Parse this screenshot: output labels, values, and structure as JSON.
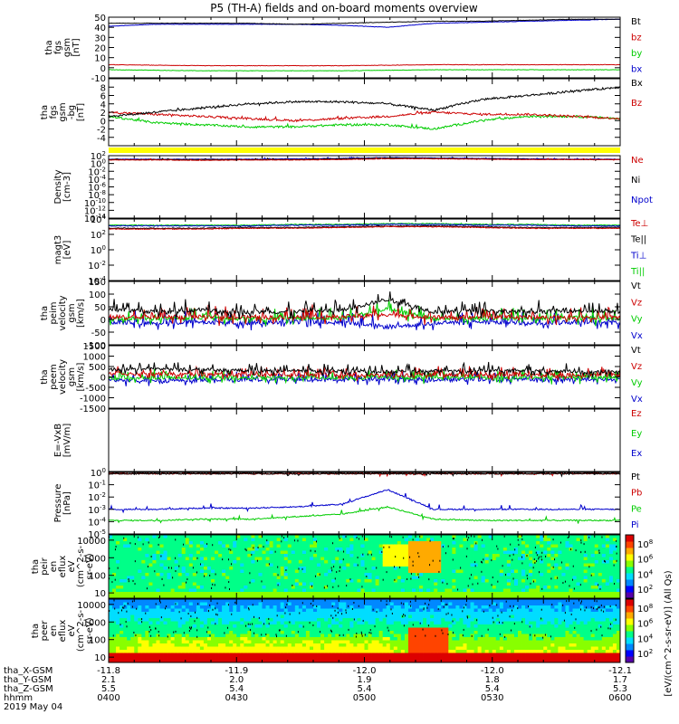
{
  "chart_data": {
    "title": "P5 (TH-A) fields and on-board moments overview",
    "type": "line",
    "date": "2019 May 04",
    "x": {
      "unit": "hhmm",
      "ticks": [
        "0400",
        "0430",
        "0500",
        "0530",
        "0600"
      ],
      "ephemeris": [
        {
          "name": "tha_X-GSM",
          "values": [
            "-11.8",
            "-11.9",
            "-12.0",
            "-12.0",
            "-12.1"
          ]
        },
        {
          "name": "tha_Y-GSM",
          "values": [
            "2.1",
            "2.0",
            "1.9",
            "1.8",
            "1.7"
          ]
        },
        {
          "name": "tha_Z-GSM",
          "values": [
            "5.5",
            "5.4",
            "5.4",
            "5.4",
            "5.3"
          ]
        }
      ]
    },
    "panels": [
      {
        "ylabel": [
          "tha",
          "fgs",
          "gsm",
          "[nT]"
        ],
        "ylim": [
          -10,
          50
        ],
        "yticks": [
          "50",
          "40",
          "30",
          "20",
          "10",
          "0",
          "-10"
        ],
        "series": [
          {
            "name": "Bt",
            "color": "#000000",
            "values": [
              44,
              44,
              44,
              44,
              43,
              44,
              45,
              46,
              46,
              47,
              48,
              48
            ]
          },
          {
            "name": "bz",
            "color": "#cc0000",
            "values": [
              3,
              2.5,
              2,
              2,
              2,
              2,
              2.5,
              3,
              3,
              3,
              3,
              3
            ]
          },
          {
            "name": "by",
            "color": "#00cc00",
            "values": [
              -2,
              -2.5,
              -3,
              -3,
              -3,
              -3,
              -2.5,
              -2,
              -2,
              -2,
              -2,
              -2
            ]
          },
          {
            "name": "bx",
            "color": "#0000cc",
            "values": [
              41,
              43,
              43,
              43,
              43,
              42,
              40,
              44,
              45,
              46,
              47,
              48
            ]
          }
        ]
      },
      {
        "ylabel": [
          "tha",
          "fgs",
          "gsm",
          "-bg",
          "[nT]"
        ],
        "ylim": [
          -6,
          10
        ],
        "yticks": [
          "8",
          "6",
          "4",
          "2",
          "0",
          "-2",
          "-4"
        ],
        "series": [
          {
            "name": "Bx",
            "color": "#000000",
            "values": [
              1,
              2,
              3,
              4,
              4.5,
              4.5,
              4,
              2.5,
              5,
              6,
              7,
              8
            ]
          },
          {
            "name": "Bz",
            "color": "#cc0000",
            "values": [
              2,
              1.5,
              1,
              0.5,
              0,
              0.5,
              1,
              2,
              1.5,
              1.5,
              1,
              0.5
            ]
          },
          {
            "name": "",
            "color": "#00cc00",
            "values": [
              1,
              -0.5,
              -1,
              -1.5,
              -1.5,
              -1,
              -1,
              -2,
              0,
              1,
              1,
              0.5
            ]
          }
        ]
      },
      {
        "ylabel": [
          "Density",
          "[cm-3]"
        ],
        "ylim": [
          "10^-14",
          "10^2"
        ],
        "yticks": [
          "10^2",
          "10^0",
          "10^-2",
          "10^-4",
          "10^-6",
          "10^-8",
          "10^-10",
          "10^-12",
          "10^-14"
        ],
        "series": [
          {
            "name": "Ne",
            "color": "#cc0000",
            "values": [
              0.9,
              0.9,
              0.8,
              0.9,
              0.9,
              1,
              1.2,
              1.2,
              1.1,
              1,
              1,
              1
            ]
          },
          {
            "name": "Ni",
            "color": "#000000",
            "values": [
              1,
              1,
              1,
              1,
              1,
              1.2,
              1.4,
              1.3,
              1.2,
              1.1,
              1,
              1
            ]
          },
          {
            "name": "Npot",
            "color": "#0000cc",
            "values": [
              1.1,
              1.1,
              1.1,
              1.1,
              1.2,
              1.3,
              1.5,
              1.4,
              1.3,
              1.2,
              1.1,
              1.1
            ]
          }
        ]
      },
      {
        "ylabel": [
          "magt3",
          "[eV]"
        ],
        "ylim": [
          "10^-4",
          "10^4"
        ],
        "yticks": [
          "10^4",
          "10^2",
          "10^0",
          "10^-2",
          "10^-4"
        ],
        "series": [
          {
            "name": "Te⊥",
            "color": "#cc0000",
            "values": [
              2.7,
              2.7,
              2.7,
              2.8,
              2.8,
              2.9,
              3,
              3,
              2.9,
              2.8,
              2.8,
              2.8
            ]
          },
          {
            "name": "Te||",
            "color": "#000000",
            "values": [
              2.8,
              2.8,
              2.8,
              2.9,
              2.9,
              3,
              3.1,
              3.1,
              3,
              2.9,
              2.9,
              2.9
            ]
          },
          {
            "name": "Ti⊥",
            "color": "#0000cc",
            "values": [
              3.1,
              3.1,
              3.1,
              3.1,
              3.2,
              3.2,
              3.3,
              3.3,
              3.2,
              3.2,
              3.1,
              3.1
            ]
          },
          {
            "name": "Ti||",
            "color": "#00cc00",
            "values": [
              3.2,
              3.2,
              3.2,
              3.2,
              3.3,
              3.3,
              3.4,
              3.4,
              3.3,
              3.3,
              3.2,
              3.2
            ]
          }
        ]
      },
      {
        "ylabel": [
          "tha",
          "peim",
          "velocity",
          "gsm",
          "[km/s]"
        ],
        "ylim": [
          -100,
          150
        ],
        "yticks": [
          "150",
          "100",
          "50",
          "0",
          "-50",
          "-100"
        ],
        "series": [
          {
            "name": "Vt",
            "color": "#000000",
            "values": [
              40,
              30,
              35,
              30,
              30,
              35,
              80,
              30,
              35,
              30,
              35,
              30
            ]
          },
          {
            "name": "Vz",
            "color": "#cc0000",
            "values": [
              10,
              8,
              10,
              8,
              10,
              10,
              20,
              8,
              10,
              8,
              10,
              8
            ]
          },
          {
            "name": "Vy",
            "color": "#00cc00",
            "values": [
              5,
              3,
              5,
              3,
              5,
              5,
              40,
              3,
              5,
              3,
              5,
              3
            ]
          },
          {
            "name": "Vx",
            "color": "#0000cc",
            "values": [
              -10,
              -15,
              -10,
              -15,
              -10,
              -10,
              -30,
              -15,
              -10,
              -15,
              -10,
              -15
            ]
          }
        ]
      },
      {
        "ylabel": [
          "tha",
          "peem",
          "velocity",
          "gsm",
          "[km/s]"
        ],
        "ylim": [
          -1500,
          1500
        ],
        "yticks": [
          "1500",
          "1000",
          "500",
          "0",
          "-500",
          "-1000",
          "-1500"
        ],
        "series": [
          {
            "name": "Vt",
            "color": "#000000",
            "values": [
              350,
              400,
              350,
              300,
              300,
              280,
              250,
              300,
              300,
              280,
              260,
              250
            ]
          },
          {
            "name": "Vz",
            "color": "#cc0000",
            "values": [
              150,
              150,
              120,
              100,
              100,
              100,
              80,
              100,
              100,
              100,
              90,
              90
            ]
          },
          {
            "name": "Vy",
            "color": "#00cc00",
            "values": [
              -50,
              -50,
              -60,
              -40,
              -40,
              -40,
              -30,
              -50,
              -40,
              -40,
              -40,
              -40
            ]
          },
          {
            "name": "Vx",
            "color": "#0000cc",
            "values": [
              -150,
              -180,
              -160,
              -140,
              -140,
              -130,
              -120,
              -150,
              -140,
              -130,
              -130,
              -130
            ]
          }
        ]
      },
      {
        "ylabel": [
          "E=-VxB",
          "[mV/m]"
        ],
        "ylim": null,
        "yticks": [],
        "series": [
          {
            "name": "Ez",
            "color": "#cc0000",
            "values": []
          },
          {
            "name": "Ey",
            "color": "#00cc00",
            "values": []
          },
          {
            "name": "Ex",
            "color": "#0000cc",
            "values": []
          }
        ]
      },
      {
        "ylabel": [
          "Pressure",
          "[nPa]"
        ],
        "ylim": [
          "10^-5",
          "10^0"
        ],
        "yticks": [
          "10^0",
          "10^-1",
          "10^-2",
          "10^-3",
          "10^-4",
          "10^-5"
        ],
        "series": [
          {
            "name": "Pt",
            "color": "#000000",
            "values": [
              -0.1,
              -0.1,
              -0.1,
              -0.1,
              -0.1,
              -0.1,
              -0.1,
              -0.1,
              -0.1,
              -0.1,
              -0.1,
              -0.1
            ]
          },
          {
            "name": "Pb",
            "color": "#cc0000",
            "values": [
              -0.1,
              -0.1,
              -0.1,
              -0.1,
              -0.1,
              -0.1,
              -0.1,
              -0.1,
              -0.1,
              -0.1,
              -0.1,
              -0.1
            ]
          },
          {
            "name": "Pe",
            "color": "#00cc00",
            "values": [
              -3.9,
              -3.9,
              -3.8,
              -3.8,
              -3.6,
              -3.4,
              -2.8,
              -3.8,
              -3.9,
              -3.9,
              -3.9,
              -3.9
            ]
          },
          {
            "name": "Pi",
            "color": "#0000cc",
            "values": [
              -3.0,
              -3.0,
              -2.9,
              -2.9,
              -2.8,
              -2.6,
              -1.4,
              -3.0,
              -3.0,
              -3.0,
              -3.0,
              -3.0
            ]
          }
        ]
      },
      {
        "ylabel": [
          "tha",
          "peir",
          "en",
          "eflux",
          "eV",
          "(cm^2-s-",
          "sr-eV)"
        ],
        "type": "spectrogram",
        "yticks": [
          "10000",
          "1000",
          "100",
          "10"
        ],
        "colorbar_label": "[eV/(cm^2-s-sr-eV)] (All Qs)",
        "colorbar_ticks": [
          "10^8",
          "10^6",
          "10^4",
          "10^2"
        ]
      },
      {
        "ylabel": [
          "tha",
          "peer",
          "en",
          "eflux",
          "eV",
          "(cm^2-s-",
          "sr-eV)"
        ],
        "type": "spectrogram",
        "yticks": [
          "10000",
          "1000",
          "100",
          "10"
        ],
        "colorbar_ticks": [
          "10^8",
          "10^6",
          "10^4",
          "10^2"
        ]
      }
    ],
    "yellow_bar_color": "#ffff00",
    "colorbar_colors": [
      "#5500aa",
      "#0000ff",
      "#0088ff",
      "#00ddff",
      "#00ff88",
      "#88ff00",
      "#ffff00",
      "#ffaa00",
      "#ff4400",
      "#dd0000"
    ]
  }
}
